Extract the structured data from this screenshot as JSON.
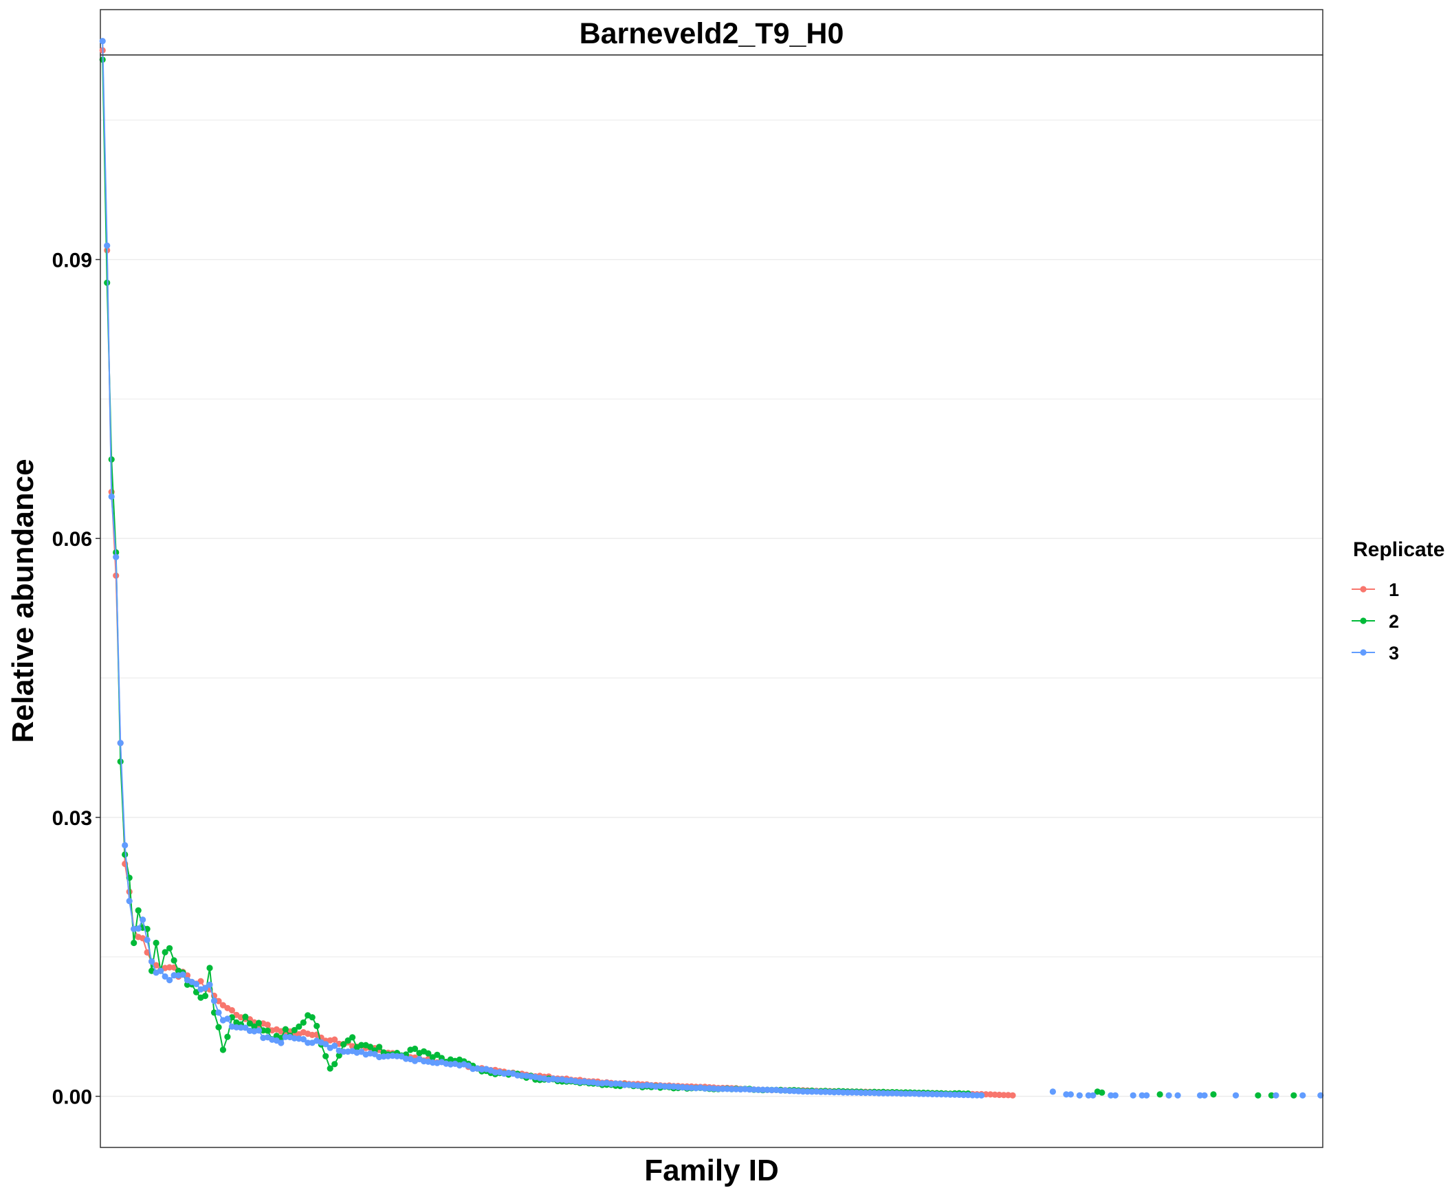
{
  "chart_data": {
    "type": "line",
    "title": "Barneveld2_T9_H0",
    "xlabel": "Family ID",
    "ylabel": "Relative abundance",
    "ylim": [
      -0.0055,
      0.112
    ],
    "yticks": [
      0.0,
      0.03,
      0.06,
      0.09
    ],
    "ytick_labels": [
      "0.00",
      "0.03",
      "0.06",
      "0.09"
    ],
    "xlim": [
      0.5,
      274.5
    ],
    "x_tick_labels_shown": false,
    "grid": "horizontal",
    "legend": {
      "title": "Replicate",
      "position": "right"
    },
    "series": [
      {
        "name": "1",
        "color": "#F8766D",
        "anchors": [
          [
            1,
            0.1125
          ],
          [
            2,
            0.091
          ],
          [
            3,
            0.065
          ],
          [
            4,
            0.056
          ],
          [
            5,
            0.038
          ],
          [
            6,
            0.025
          ],
          [
            7,
            0.022
          ],
          [
            8,
            0.018
          ],
          [
            10,
            0.017
          ],
          [
            12,
            0.0145
          ],
          [
            15,
            0.0138
          ],
          [
            20,
            0.013
          ],
          [
            25,
            0.0115
          ],
          [
            28,
            0.0098
          ],
          [
            32,
            0.0085
          ],
          [
            40,
            0.0072
          ],
          [
            50,
            0.0063
          ],
          [
            60,
            0.0052
          ],
          [
            70,
            0.0042
          ],
          [
            80,
            0.0035
          ],
          [
            90,
            0.0027
          ],
          [
            100,
            0.0021
          ],
          [
            110,
            0.0016
          ],
          [
            120,
            0.0013
          ],
          [
            130,
            0.0011
          ],
          [
            140,
            0.0009
          ],
          [
            150,
            0.0007
          ],
          [
            160,
            0.0006
          ],
          [
            170,
            0.0005
          ],
          [
            180,
            0.0004
          ],
          [
            190,
            0.0003
          ],
          [
            200,
            0.0002
          ],
          [
            205,
            0.0001
          ]
        ],
        "range": [
          1,
          205
        ],
        "noise": 0.04,
        "extra_points": []
      },
      {
        "name": "2",
        "color": "#00BA38",
        "anchors": [
          [
            1,
            0.1115
          ],
          [
            2,
            0.0875
          ],
          [
            3,
            0.0685
          ],
          [
            4,
            0.0585
          ],
          [
            5,
            0.036
          ],
          [
            6,
            0.026
          ],
          [
            7,
            0.0235
          ],
          [
            8,
            0.0165
          ],
          [
            9,
            0.02
          ],
          [
            11,
            0.018
          ],
          [
            12,
            0.0135
          ],
          [
            13,
            0.0165
          ],
          [
            14,
            0.0135
          ],
          [
            15,
            0.0155
          ],
          [
            18,
            0.0135
          ],
          [
            20,
            0.012
          ],
          [
            22,
            0.0112
          ],
          [
            24,
            0.0108
          ],
          [
            25,
            0.0138
          ],
          [
            26,
            0.009
          ],
          [
            28,
            0.005
          ],
          [
            30,
            0.0085
          ],
          [
            35,
            0.0075
          ],
          [
            40,
            0.0065
          ],
          [
            45,
            0.0075
          ],
          [
            48,
            0.0085
          ],
          [
            52,
            0.003
          ],
          [
            56,
            0.006
          ],
          [
            60,
            0.0055
          ],
          [
            65,
            0.0045
          ],
          [
            70,
            0.005
          ],
          [
            75,
            0.0042
          ],
          [
            80,
            0.0038
          ],
          [
            85,
            0.003
          ],
          [
            90,
            0.0025
          ],
          [
            95,
            0.0022
          ],
          [
            100,
            0.0018
          ],
          [
            110,
            0.0014
          ],
          [
            120,
            0.0011
          ],
          [
            130,
            0.0009
          ],
          [
            140,
            0.0008
          ],
          [
            150,
            0.0007
          ],
          [
            160,
            0.0006
          ],
          [
            170,
            0.0005
          ],
          [
            180,
            0.0004
          ],
          [
            190,
            0.0003
          ],
          [
            195,
            0.0003
          ]
        ],
        "range": [
          1,
          195
        ],
        "noise": 0.09,
        "extra_points": [
          [
            224,
            0.0005
          ],
          [
            225,
            0.0004
          ],
          [
            238,
            0.0002
          ],
          [
            250,
            0.0002
          ],
          [
            260,
            0.0001
          ],
          [
            263,
            0.0001
          ],
          [
            268,
            0.0001
          ]
        ]
      },
      {
        "name": "3",
        "color": "#619CFF",
        "anchors": [
          [
            1,
            0.1135
          ],
          [
            2,
            0.0915
          ],
          [
            3,
            0.0645
          ],
          [
            4,
            0.058
          ],
          [
            5,
            0.038
          ],
          [
            6,
            0.027
          ],
          [
            7,
            0.021
          ],
          [
            8,
            0.018
          ],
          [
            10,
            0.019
          ],
          [
            12,
            0.0145
          ],
          [
            14,
            0.0135
          ],
          [
            16,
            0.0125
          ],
          [
            18,
            0.013
          ],
          [
            20,
            0.0125
          ],
          [
            23,
            0.0115
          ],
          [
            25,
            0.012
          ],
          [
            27,
            0.009
          ],
          [
            30,
            0.0075
          ],
          [
            35,
            0.007
          ],
          [
            40,
            0.006
          ],
          [
            45,
            0.0062
          ],
          [
            50,
            0.0058
          ],
          [
            55,
            0.0048
          ],
          [
            60,
            0.0045
          ],
          [
            70,
            0.004
          ],
          [
            80,
            0.0035
          ],
          [
            85,
            0.003
          ],
          [
            90,
            0.0026
          ],
          [
            100,
            0.0019
          ],
          [
            110,
            0.0015
          ],
          [
            120,
            0.0012
          ],
          [
            130,
            0.001
          ],
          [
            140,
            0.0008
          ],
          [
            150,
            0.0007
          ],
          [
            160,
            0.0005
          ],
          [
            170,
            0.0004
          ],
          [
            180,
            0.0003
          ],
          [
            190,
            0.0002
          ],
          [
            198,
            0.0001
          ]
        ],
        "range": [
          1,
          198
        ],
        "noise": 0.05,
        "extra_points": [
          [
            214,
            0.0005
          ],
          [
            217,
            0.0002
          ],
          [
            218,
            0.0002
          ],
          [
            220,
            0.0001
          ],
          [
            222,
            0.0001
          ],
          [
            223,
            0.0001
          ],
          [
            227,
            0.0001
          ],
          [
            228,
            0.0001
          ],
          [
            232,
            0.0001
          ],
          [
            234,
            0.0001
          ],
          [
            235,
            0.0001
          ],
          [
            240,
            0.0001
          ],
          [
            242,
            0.0001
          ],
          [
            247,
            0.0001
          ],
          [
            248,
            0.0001
          ],
          [
            255,
            0.0001
          ],
          [
            264,
            0.0001
          ],
          [
            270,
            0.0001
          ],
          [
            274,
            0.0001
          ]
        ]
      }
    ]
  }
}
